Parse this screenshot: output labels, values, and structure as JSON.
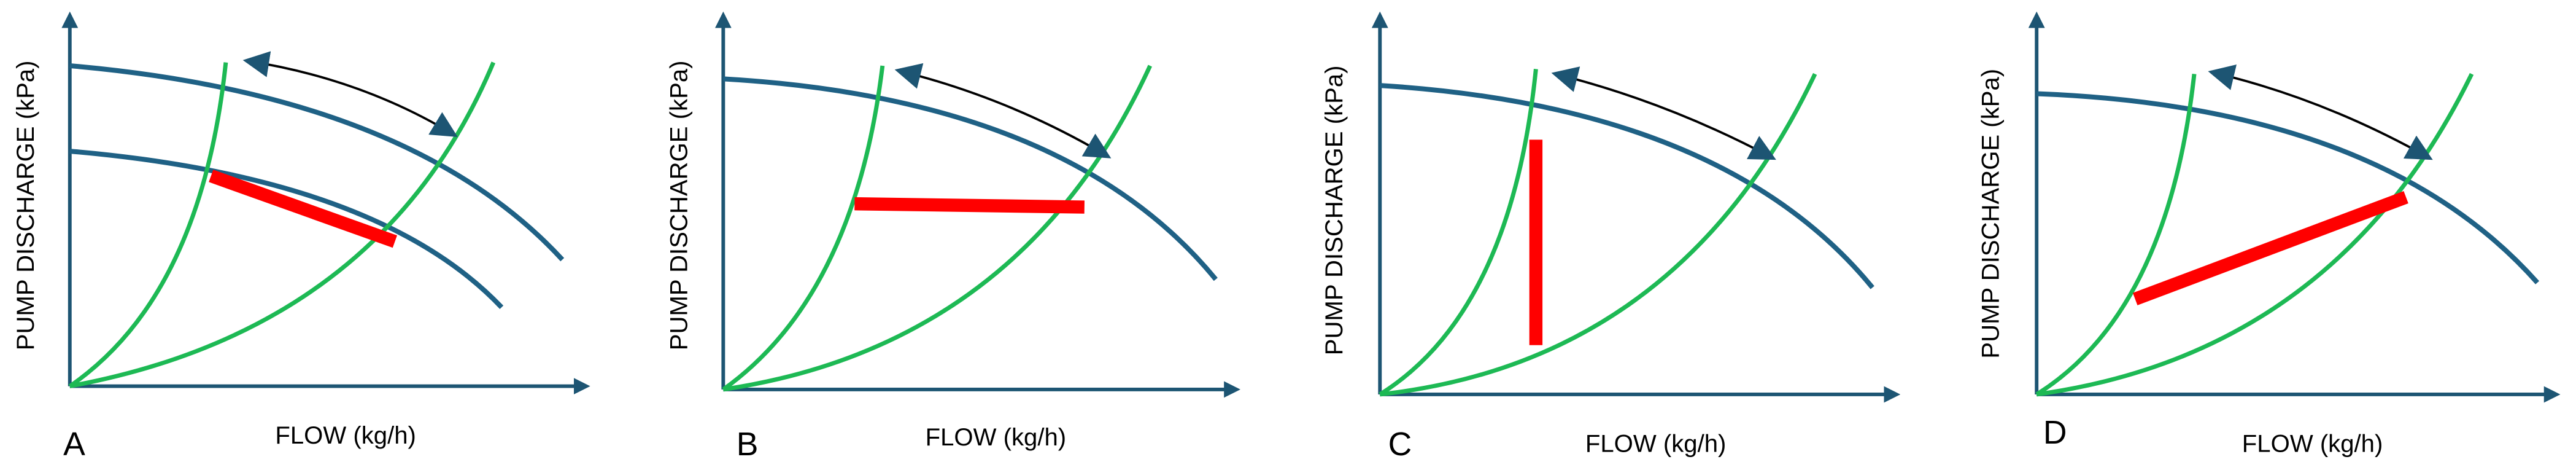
{
  "panels": [
    {
      "letter": "A",
      "x_label": "FLOW  (kg/h)",
      "y_label": "PUMP DISCHARGE  (kPa)"
    },
    {
      "letter": "B",
      "x_label": "FLOW  (kg/h)",
      "y_label": "PUMP DISCHARGE  (kPa)"
    },
    {
      "letter": "C",
      "x_label": "FLOW  (kg/h)",
      "y_label": "PUMP DISCHARGE  (kPa)"
    },
    {
      "letter": "D",
      "x_label": "FLOW  (kg/h)",
      "y_label": "PUMP DISCHARGE  (kPa)"
    }
  ]
}
